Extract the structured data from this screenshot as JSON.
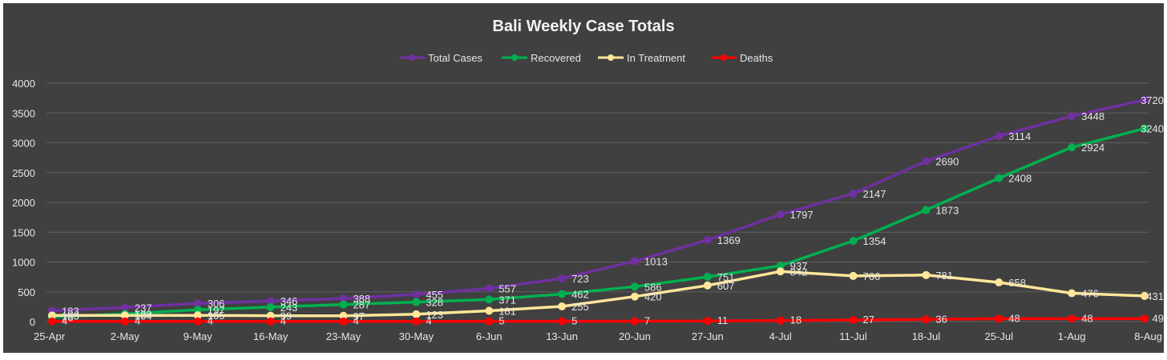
{
  "chart_data": {
    "type": "line",
    "title": "Bali Weekly Case Totals",
    "xlabel": "",
    "ylabel": "",
    "ylim": [
      0,
      4000
    ],
    "yticks": [
      0,
      500,
      1000,
      1500,
      2000,
      2500,
      3000,
      3500,
      4000
    ],
    "grid": true,
    "legend_position": "top",
    "categories": [
      "25-Apr",
      "2-May",
      "9-May",
      "16-May",
      "23-May",
      "30-May",
      "6-Jun",
      "13-Jun",
      "20-Jun",
      "27-Jun",
      "4-Jul",
      "11-Jul",
      "18-Jul",
      "25-Jul",
      "1-Aug",
      "8-Aug"
    ],
    "series": [
      {
        "name": "Total Cases",
        "color": "#7030a0",
        "values": [
          183,
          237,
          306,
          346,
          388,
          455,
          557,
          723,
          1013,
          1369,
          1797,
          2147,
          2690,
          3114,
          3448,
          3720
        ]
      },
      {
        "name": "Recovered",
        "color": "#00b050",
        "values": [
          76,
          129,
          197,
          243,
          287,
          328,
          371,
          462,
          586,
          751,
          937,
          1354,
          1873,
          2408,
          2924,
          3240
        ]
      },
      {
        "name": "In Treatment",
        "color": "#ffe699",
        "values": [
          103,
          104,
          105,
          99,
          97,
          123,
          181,
          255,
          420,
          607,
          842,
          766,
          781,
          658,
          476,
          431
        ]
      },
      {
        "name": "Deaths",
        "color": "#ff0000",
        "values": [
          4,
          4,
          4,
          4,
          4,
          4,
          5,
          5,
          7,
          11,
          18,
          27,
          36,
          48,
          48,
          49
        ]
      }
    ]
  }
}
